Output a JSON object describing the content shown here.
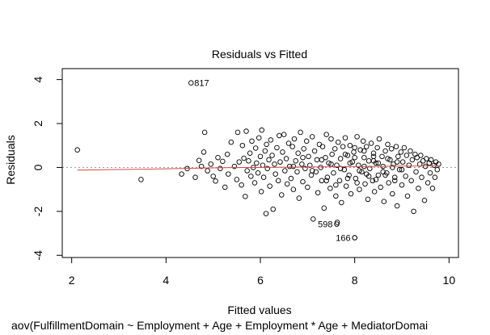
{
  "chart_data": {
    "type": "scatter",
    "title": "Residuals vs Fitted",
    "xlabel": "Fitted values",
    "ylabel": "Residuals",
    "subtitle": "aov(FulfillmentDomain ~ Employment + Age + Employment * Age + MediatorDomai",
    "xlim": [
      1.8,
      10.2
    ],
    "ylim": [
      -4.1,
      4.5
    ],
    "xticks": [
      2,
      4,
      6,
      8,
      10
    ],
    "yticks": [
      -4,
      -2,
      0,
      2,
      4
    ],
    "xtick_labels": [
      "2",
      "4",
      "6",
      "8",
      "10"
    ],
    "ytick_labels": [
      "-4",
      "-2",
      "0",
      "2",
      "4"
    ],
    "reference_line": 0,
    "grid": false,
    "point_color": "#000000",
    "smooth_color": "#d84848",
    "ref_line_color": "#9a9a9a",
    "labeled_points": [
      {
        "id": "817",
        "x": 4.53,
        "y": 3.85
      },
      {
        "id": "598",
        "x": 7.62,
        "y": -2.58
      },
      {
        "id": "166",
        "x": 8.0,
        "y": -3.2
      }
    ],
    "points": [
      [
        2.12,
        0.8
      ],
      [
        3.47,
        -0.55
      ],
      [
        4.33,
        -0.3
      ],
      [
        4.45,
        -0.05
      ],
      [
        4.62,
        -0.45
      ],
      [
        4.7,
        0.32
      ],
      [
        4.75,
        0.05
      ],
      [
        4.8,
        0.7
      ],
      [
        4.82,
        1.6
      ],
      [
        4.88,
        -0.15
      ],
      [
        4.95,
        0.15
      ],
      [
        5.0,
        -0.4
      ],
      [
        5.05,
        -0.62
      ],
      [
        5.1,
        0.45
      ],
      [
        5.15,
        -0.05
      ],
      [
        5.2,
        0.28
      ],
      [
        5.25,
        -0.9
      ],
      [
        5.3,
        0.6
      ],
      [
        5.32,
        -0.3
      ],
      [
        5.38,
        1.15
      ],
      [
        5.45,
        0.05
      ],
      [
        5.5,
        -0.55
      ],
      [
        5.52,
        1.6
      ],
      [
        5.55,
        0.25
      ],
      [
        5.6,
        -0.8
      ],
      [
        5.62,
        1.0
      ],
      [
        5.65,
        0.42
      ],
      [
        5.68,
        -1.32
      ],
      [
        5.7,
        1.65
      ],
      [
        5.72,
        -0.15
      ],
      [
        5.75,
        0.3
      ],
      [
        5.78,
        0.65
      ],
      [
        5.8,
        -0.4
      ],
      [
        5.82,
        1.2
      ],
      [
        5.85,
        0.0
      ],
      [
        5.88,
        -0.7
      ],
      [
        5.9,
        0.88
      ],
      [
        5.92,
        0.2
      ],
      [
        5.95,
        -0.25
      ],
      [
        5.97,
        1.35
      ],
      [
        6.0,
        0.5
      ],
      [
        6.02,
        -1.1
      ],
      [
        6.03,
        1.7
      ],
      [
        6.05,
        0.1
      ],
      [
        6.07,
        -0.45
      ],
      [
        6.1,
        0.75
      ],
      [
        6.12,
        -2.1
      ],
      [
        6.13,
        1.05
      ],
      [
        6.15,
        -0.05
      ],
      [
        6.18,
        0.35
      ],
      [
        6.2,
        -0.85
      ],
      [
        6.22,
        1.25
      ],
      [
        6.25,
        0.55
      ],
      [
        6.27,
        -1.9
      ],
      [
        6.3,
        0.15
      ],
      [
        6.32,
        -0.3
      ],
      [
        6.35,
        0.9
      ],
      [
        6.38,
        -0.6
      ],
      [
        6.4,
        1.45
      ],
      [
        6.42,
        0.25
      ],
      [
        6.45,
        -1.25
      ],
      [
        6.47,
        0.7
      ],
      [
        6.5,
        1.5
      ],
      [
        6.52,
        -0.15
      ],
      [
        6.55,
        0.4
      ],
      [
        6.57,
        -0.75
      ],
      [
        6.6,
        1.1
      ],
      [
        6.62,
        0.05
      ],
      [
        6.65,
        -0.5
      ],
      [
        6.68,
        0.95
      ],
      [
        6.7,
        -1.0
      ],
      [
        6.72,
        1.3
      ],
      [
        6.75,
        0.3
      ],
      [
        6.78,
        -0.2
      ],
      [
        6.8,
        0.65
      ],
      [
        6.82,
        -1.4
      ],
      [
        6.85,
        1.6
      ],
      [
        6.88,
        0.15
      ],
      [
        6.9,
        -0.65
      ],
      [
        6.92,
        0.85
      ],
      [
        6.95,
        -0.05
      ],
      [
        6.98,
        1.2
      ],
      [
        7.0,
        -0.9
      ],
      [
        7.02,
        0.5
      ],
      [
        7.05,
        0.1
      ],
      [
        7.08,
        -0.35
      ],
      [
        7.1,
        1.4
      ],
      [
        7.12,
        -2.35
      ],
      [
        7.15,
        0.75
      ],
      [
        7.18,
        -0.2
      ],
      [
        7.2,
        0.35
      ],
      [
        7.22,
        -1.15
      ],
      [
        7.25,
        1.05
      ],
      [
        7.28,
        0.0
      ],
      [
        7.3,
        -0.6
      ],
      [
        7.32,
        0.95
      ],
      [
        7.35,
        -1.85
      ],
      [
        7.38,
        0.45
      ],
      [
        7.4,
        1.5
      ],
      [
        7.42,
        -0.45
      ],
      [
        7.45,
        0.2
      ],
      [
        7.48,
        -0.95
      ],
      [
        7.5,
        1.3
      ],
      [
        7.52,
        0.6
      ],
      [
        7.55,
        -0.25
      ],
      [
        7.58,
        0.85
      ],
      [
        7.6,
        -1.3
      ],
      [
        7.62,
        0.1
      ],
      [
        7.63,
        -2.5
      ],
      [
        7.65,
        1.15
      ],
      [
        7.68,
        -0.6
      ],
      [
        7.7,
        0.4
      ],
      [
        7.72,
        -1.6
      ],
      [
        7.75,
        0.95
      ],
      [
        7.78,
        -0.1
      ],
      [
        7.8,
        1.35
      ],
      [
        7.82,
        -0.85
      ],
      [
        7.85,
        0.55
      ],
      [
        7.88,
        -0.35
      ],
      [
        7.9,
        1.0
      ],
      [
        7.92,
        -1.2
      ],
      [
        7.95,
        0.25
      ],
      [
        7.98,
        0.7
      ],
      [
        8.0,
        -3.2
      ],
      [
        8.02,
        -0.5
      ],
      [
        8.05,
        1.4
      ],
      [
        8.08,
        0.1
      ],
      [
        8.1,
        -1.0
      ],
      [
        8.12,
        0.8
      ],
      [
        8.15,
        -0.2
      ],
      [
        8.18,
        1.2
      ],
      [
        8.2,
        0.45
      ],
      [
        8.22,
        -0.75
      ],
      [
        8.25,
        0.95
      ],
      [
        8.28,
        -1.45
      ],
      [
        8.3,
        0.3
      ],
      [
        8.32,
        -0.05
      ],
      [
        8.35,
        1.1
      ],
      [
        8.38,
        -0.6
      ],
      [
        8.4,
        0.65
      ],
      [
        8.42,
        -1.1
      ],
      [
        8.45,
        0.2
      ],
      [
        8.48,
        0.9
      ],
      [
        8.5,
        -0.35
      ],
      [
        8.52,
        1.3
      ],
      [
        8.55,
        -0.9
      ],
      [
        8.58,
        0.5
      ],
      [
        8.6,
        0.05
      ],
      [
        8.62,
        -1.55
      ],
      [
        8.65,
        0.75
      ],
      [
        8.68,
        -0.25
      ],
      [
        8.7,
        1.05
      ],
      [
        8.72,
        -0.7
      ],
      [
        8.75,
        0.35
      ],
      [
        8.78,
        0.85
      ],
      [
        8.8,
        -1.2
      ],
      [
        8.82,
        0.15
      ],
      [
        8.85,
        -0.45
      ],
      [
        8.88,
        0.95
      ],
      [
        8.9,
        -1.75
      ],
      [
        8.92,
        0.5
      ],
      [
        8.95,
        -0.1
      ],
      [
        8.98,
        0.7
      ],
      [
        9.0,
        -0.8
      ],
      [
        9.02,
        0.25
      ],
      [
        9.05,
        0.9
      ],
      [
        9.08,
        -0.4
      ],
      [
        9.1,
        0.55
      ],
      [
        9.12,
        -1.3
      ],
      [
        9.15,
        0.1
      ],
      [
        9.18,
        0.75
      ],
      [
        9.2,
        -0.6
      ],
      [
        9.22,
        0.35
      ],
      [
        9.25,
        -2.0
      ],
      [
        9.28,
        0.6
      ],
      [
        9.3,
        -0.2
      ],
      [
        9.32,
        0.45
      ],
      [
        9.35,
        -0.95
      ],
      [
        9.38,
        0.15
      ],
      [
        9.4,
        0.55
      ],
      [
        9.42,
        -0.45
      ],
      [
        9.45,
        0.3
      ],
      [
        9.48,
        -1.5
      ],
      [
        9.5,
        0.05
      ],
      [
        9.52,
        0.4
      ],
      [
        9.55,
        -0.7
      ],
      [
        9.58,
        0.2
      ],
      [
        9.6,
        -0.25
      ],
      [
        9.62,
        0.35
      ],
      [
        9.65,
        -0.95
      ],
      [
        9.68,
        0.1
      ],
      [
        9.7,
        -0.45
      ],
      [
        9.72,
        0.25
      ],
      [
        9.75,
        -0.1
      ],
      [
        9.78,
        0.15
      ],
      [
        7.9,
        0.2
      ],
      [
        8.0,
        0.45
      ],
      [
        8.1,
        -0.15
      ],
      [
        8.2,
        0.05
      ],
      [
        8.3,
        -0.4
      ],
      [
        8.4,
        0.3
      ],
      [
        7.7,
        -0.05
      ],
      [
        7.5,
        0.15
      ],
      [
        7.3,
        0.35
      ],
      [
        7.1,
        -0.15
      ],
      [
        6.9,
        0.45
      ],
      [
        6.7,
        0.05
      ],
      [
        8.5,
        0.2
      ],
      [
        8.6,
        -0.2
      ],
      [
        8.7,
        0.4
      ],
      [
        8.8,
        0.0
      ],
      [
        8.9,
        0.25
      ],
      [
        9.0,
        -0.1
      ],
      [
        7.85,
        -0.5
      ],
      [
        8.05,
        -0.7
      ],
      [
        8.25,
        -0.3
      ],
      [
        8.45,
        -0.55
      ],
      [
        8.65,
        -0.35
      ],
      [
        8.85,
        -0.6
      ],
      [
        7.4,
        -0.6
      ],
      [
        7.6,
        -0.8
      ],
      [
        7.8,
        0.6
      ],
      [
        8.0,
        0.9
      ],
      [
        8.2,
        0.75
      ],
      [
        8.4,
        0.5
      ]
    ],
    "smooth_line": [
      [
        2.12,
        -0.12
      ],
      [
        2.8,
        -0.1
      ],
      [
        3.5,
        -0.08
      ],
      [
        4.0,
        -0.06
      ],
      [
        4.5,
        -0.04
      ],
      [
        5.0,
        -0.02
      ],
      [
        5.5,
        0.0
      ],
      [
        6.0,
        0.0
      ],
      [
        6.5,
        0.01
      ],
      [
        7.0,
        0.02
      ],
      [
        7.5,
        0.03
      ],
      [
        8.0,
        0.04
      ],
      [
        8.5,
        0.05
      ],
      [
        9.0,
        0.06
      ],
      [
        9.5,
        0.07
      ],
      [
        9.78,
        0.08
      ]
    ]
  }
}
